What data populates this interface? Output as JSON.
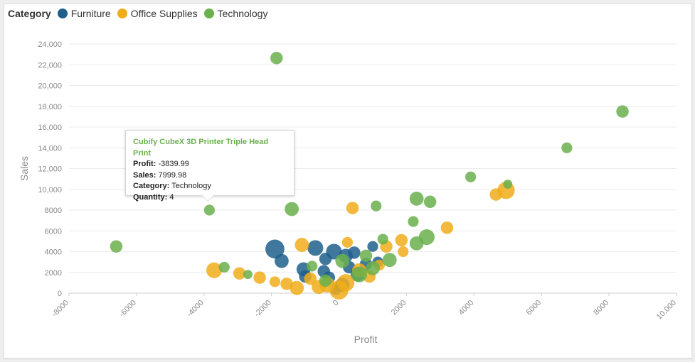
{
  "legend": {
    "title": "Category",
    "items": [
      {
        "label": "Furniture",
        "color": "#1f5f8b"
      },
      {
        "label": "Office Supplies",
        "color": "#f0ad1a"
      },
      {
        "label": "Technology",
        "color": "#6ab04c"
      }
    ]
  },
  "tooltip": {
    "title": "Cubify CubeX 3D Printer Triple Head Print",
    "profit_label": "Profit:",
    "profit_value": "-3839.99",
    "sales_label": "Sales:",
    "sales_value": "7999.98",
    "category_label": "Category:",
    "category_value": "Technology",
    "quantity_label": "Quantity:",
    "quantity_value": "4"
  },
  "chart_data": {
    "type": "scatter",
    "xlabel": "Profit",
    "ylabel": "Sales",
    "xlim": [
      -8000,
      10000
    ],
    "ylim": [
      0,
      24000
    ],
    "x_ticks": [
      "-8000",
      "-6000",
      "-4000",
      "-2000",
      "0",
      "2000",
      "4000",
      "6000",
      "8000",
      "10,000"
    ],
    "y_ticks": [
      "0",
      "2000",
      "4000",
      "6000",
      "8000",
      "10,000",
      "12,000",
      "14,000",
      "16,000",
      "18,000",
      "20,000",
      "22,000",
      "24,000"
    ],
    "grid": true,
    "legend_position": "top-left",
    "size_encoding": "Quantity",
    "series": [
      {
        "name": "Furniture",
        "color": "#1f5f8b",
        "points": [
          {
            "x": -1900,
            "y": 4250,
            "q": 9
          },
          {
            "x": -1700,
            "y": 3100,
            "q": 6
          },
          {
            "x": -1050,
            "y": 2300,
            "q": 6
          },
          {
            "x": -1000,
            "y": 1600,
            "q": 5
          },
          {
            "x": -700,
            "y": 4350,
            "q": 7
          },
          {
            "x": -400,
            "y": 3300,
            "q": 5
          },
          {
            "x": -450,
            "y": 2100,
            "q": 5
          },
          {
            "x": -300,
            "y": 1500,
            "q": 5
          },
          {
            "x": -100,
            "y": 350,
            "q": 4
          },
          {
            "x": -150,
            "y": 4000,
            "q": 7
          },
          {
            "x": 200,
            "y": 3600,
            "q": 6
          },
          {
            "x": 450,
            "y": 3900,
            "q": 5
          },
          {
            "x": 550,
            "y": 1800,
            "q": 6
          },
          {
            "x": 800,
            "y": 2800,
            "q": 5
          },
          {
            "x": 1000,
            "y": 4500,
            "q": 4
          },
          {
            "x": 1150,
            "y": 3000,
            "q": 4
          },
          {
            "x": 100,
            "y": 800,
            "q": 6
          },
          {
            "x": 300,
            "y": 2500,
            "q": 5
          }
        ]
      },
      {
        "name": "Office Supplies",
        "color": "#f0ad1a",
        "points": [
          {
            "x": -3700,
            "y": 2200,
            "q": 7
          },
          {
            "x": -2950,
            "y": 1900,
            "q": 5
          },
          {
            "x": -2350,
            "y": 1500,
            "q": 5
          },
          {
            "x": -1900,
            "y": 1100,
            "q": 4
          },
          {
            "x": -1550,
            "y": 900,
            "q": 5
          },
          {
            "x": -1250,
            "y": 500,
            "q": 6
          },
          {
            "x": -1100,
            "y": 4650,
            "q": 6
          },
          {
            "x": -850,
            "y": 1400,
            "q": 5
          },
          {
            "x": -600,
            "y": 600,
            "q": 6
          },
          {
            "x": -350,
            "y": 800,
            "q": 7
          },
          {
            "x": 0,
            "y": 300,
            "q": 9
          },
          {
            "x": 200,
            "y": 1000,
            "q": 8
          },
          {
            "x": 400,
            "y": 8200,
            "q": 5
          },
          {
            "x": 600,
            "y": 2200,
            "q": 6
          },
          {
            "x": 900,
            "y": 1600,
            "q": 5
          },
          {
            "x": 1400,
            "y": 4500,
            "q": 5
          },
          {
            "x": 1850,
            "y": 5100,
            "q": 5
          },
          {
            "x": 1900,
            "y": 4000,
            "q": 4
          },
          {
            "x": 3200,
            "y": 6300,
            "q": 5
          },
          {
            "x": 4650,
            "y": 9500,
            "q": 5
          },
          {
            "x": 4950,
            "y": 9900,
            "q": 8
          },
          {
            "x": 250,
            "y": 4900,
            "q": 4
          },
          {
            "x": 1200,
            "y": 2700,
            "q": 4
          }
        ]
      },
      {
        "name": "Technology",
        "color": "#6ab04c",
        "points": [
          {
            "x": -1850,
            "y": 22650,
            "q": 5
          },
          {
            "x": 8400,
            "y": 17500,
            "q": 5
          },
          {
            "x": 6750,
            "y": 14000,
            "q": 4
          },
          {
            "x": 3900,
            "y": 11200,
            "q": 4
          },
          {
            "x": 5000,
            "y": 10500,
            "q": 3
          },
          {
            "x": -3839.99,
            "y": 7999.98,
            "q": 4
          },
          {
            "x": -1400,
            "y": 8100,
            "q": 6
          },
          {
            "x": -6600,
            "y": 4500,
            "q": 5
          },
          {
            "x": -3400,
            "y": 2500,
            "q": 4
          },
          {
            "x": -2700,
            "y": 1800,
            "q": 3
          },
          {
            "x": 1100,
            "y": 8400,
            "q": 4
          },
          {
            "x": 2300,
            "y": 9100,
            "q": 6
          },
          {
            "x": 2700,
            "y": 8800,
            "q": 5
          },
          {
            "x": 2200,
            "y": 6900,
            "q": 4
          },
          {
            "x": 2600,
            "y": 5400,
            "q": 7
          },
          {
            "x": 2300,
            "y": 4800,
            "q": 6
          },
          {
            "x": 1300,
            "y": 5200,
            "q": 4
          },
          {
            "x": 1500,
            "y": 3200,
            "q": 6
          },
          {
            "x": 600,
            "y": 1800,
            "q": 7
          },
          {
            "x": 100,
            "y": 3100,
            "q": 6
          },
          {
            "x": -400,
            "y": 1200,
            "q": 5
          },
          {
            "x": 800,
            "y": 3600,
            "q": 5
          },
          {
            "x": 1000,
            "y": 2400,
            "q": 6
          },
          {
            "x": -800,
            "y": 2600,
            "q": 4
          }
        ]
      }
    ]
  }
}
